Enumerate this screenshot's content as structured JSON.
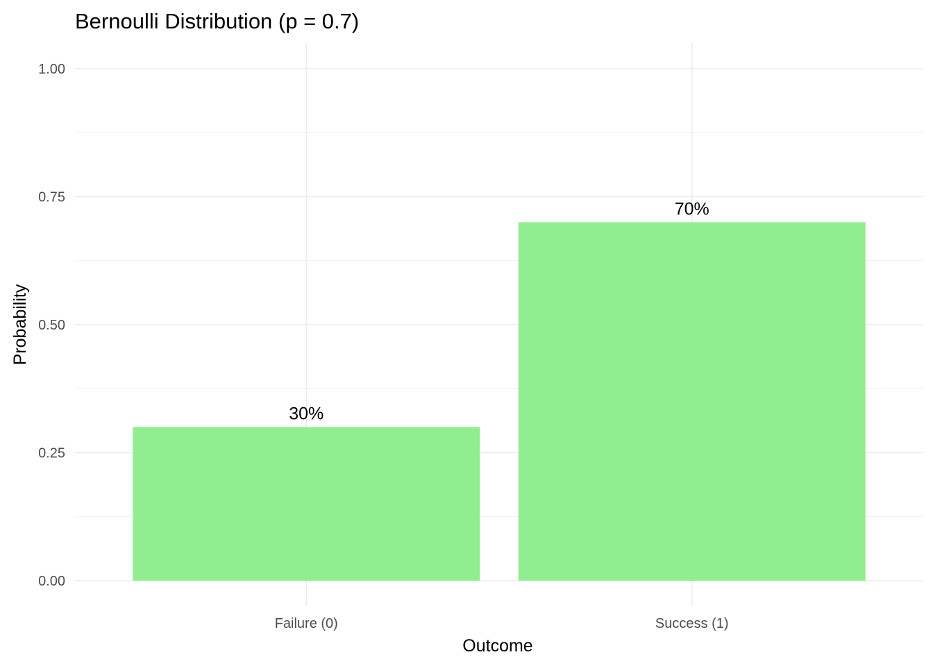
{
  "chart_data": {
    "type": "bar",
    "title": "Bernoulli Distribution (p = 0.7)",
    "xlabel": "Outcome",
    "ylabel": "Probability",
    "categories": [
      "Failure (0)",
      "Success (1)"
    ],
    "values": [
      0.3,
      0.7
    ],
    "data_labels": [
      "30%",
      "70%"
    ],
    "ylim": [
      0,
      1.05
    ],
    "yticks": [
      0,
      0.25,
      0.5,
      0.75,
      1.0
    ],
    "ytick_labels": [
      "0.00",
      "0.25",
      "0.50",
      "0.75",
      "1.00"
    ],
    "grid": true,
    "bar_color": "#90EE90",
    "background_color": "#ffffff"
  }
}
